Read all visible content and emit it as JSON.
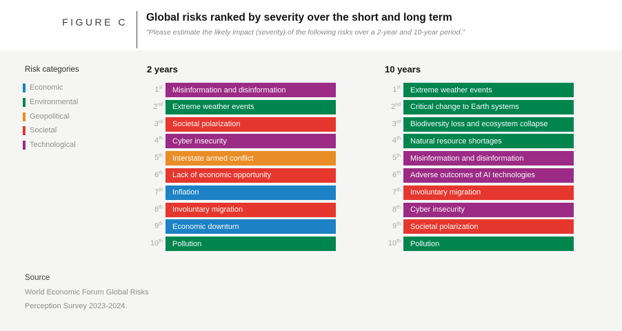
{
  "figure": {
    "label": "FIGURE C",
    "title": "Global risks ranked by severity over the short and long term",
    "subtitle": "\"Please estimate the likely impact (severity) of the following risks over a 2-year and 10-year period.\""
  },
  "legend": {
    "title": "Risk categories",
    "categories": [
      {
        "name": "Economic",
        "color": "#1C82C5"
      },
      {
        "name": "Environmental",
        "color": "#00854E"
      },
      {
        "name": "Geopolitical",
        "color": "#E98D26"
      },
      {
        "name": "Societal",
        "color": "#E6372E"
      },
      {
        "name": "Technological",
        "color": "#9B2B84"
      }
    ]
  },
  "chart_data": {
    "type": "ranked-bar",
    "title": "Global risks ranked by severity over the short and long term",
    "groups": [
      {
        "title": "2 years",
        "items": [
          {
            "rank": "1",
            "suffix": "st",
            "label": "Misinformation and disinformation",
            "category": "Technological"
          },
          {
            "rank": "2",
            "suffix": "nd",
            "label": "Extreme weather events",
            "category": "Environmental"
          },
          {
            "rank": "3",
            "suffix": "rd",
            "label": "Societal polarization",
            "category": "Societal"
          },
          {
            "rank": "4",
            "suffix": "th",
            "label": "Cyber insecurity",
            "category": "Technological"
          },
          {
            "rank": "5",
            "suffix": "th",
            "label": "Interstate armed conflict",
            "category": "Geopolitical"
          },
          {
            "rank": "6",
            "suffix": "th",
            "label": "Lack of economic opportunity",
            "category": "Societal"
          },
          {
            "rank": "7",
            "suffix": "th",
            "label": "Inflation",
            "category": "Economic"
          },
          {
            "rank": "8",
            "suffix": "th",
            "label": "Involuntary migration",
            "category": "Societal"
          },
          {
            "rank": "9",
            "suffix": "th",
            "label": "Economic downturn",
            "category": "Economic"
          },
          {
            "rank": "10",
            "suffix": "th",
            "label": "Pollution",
            "category": "Environmental"
          }
        ]
      },
      {
        "title": "10 years",
        "items": [
          {
            "rank": "1",
            "suffix": "st",
            "label": "Extreme weather events",
            "category": "Environmental"
          },
          {
            "rank": "2",
            "suffix": "nd",
            "label": "Critical change to Earth systems",
            "category": "Environmental"
          },
          {
            "rank": "3",
            "suffix": "rd",
            "label": "Biodiversity loss and ecosystem collapse",
            "category": "Environmental"
          },
          {
            "rank": "4",
            "suffix": "th",
            "label": "Natural resource shortages",
            "category": "Environmental"
          },
          {
            "rank": "5",
            "suffix": "th",
            "label": "Misinformation and disinformation",
            "category": "Technological"
          },
          {
            "rank": "6",
            "suffix": "th",
            "label": "Adverse outcomes of AI technologies",
            "category": "Technological"
          },
          {
            "rank": "7",
            "suffix": "th",
            "label": "Involuntary migration",
            "category": "Societal"
          },
          {
            "rank": "8",
            "suffix": "th",
            "label": "Cyber insecurity",
            "category": "Technological"
          },
          {
            "rank": "9",
            "suffix": "th",
            "label": "Societal polarization",
            "category": "Societal"
          },
          {
            "rank": "10",
            "suffix": "th",
            "label": "Pollution",
            "category": "Environmental"
          }
        ]
      }
    ]
  },
  "source": {
    "title": "Source",
    "lines": [
      "World Economic Forum Global Risks",
      "Perception Survey 2023-2024."
    ]
  }
}
